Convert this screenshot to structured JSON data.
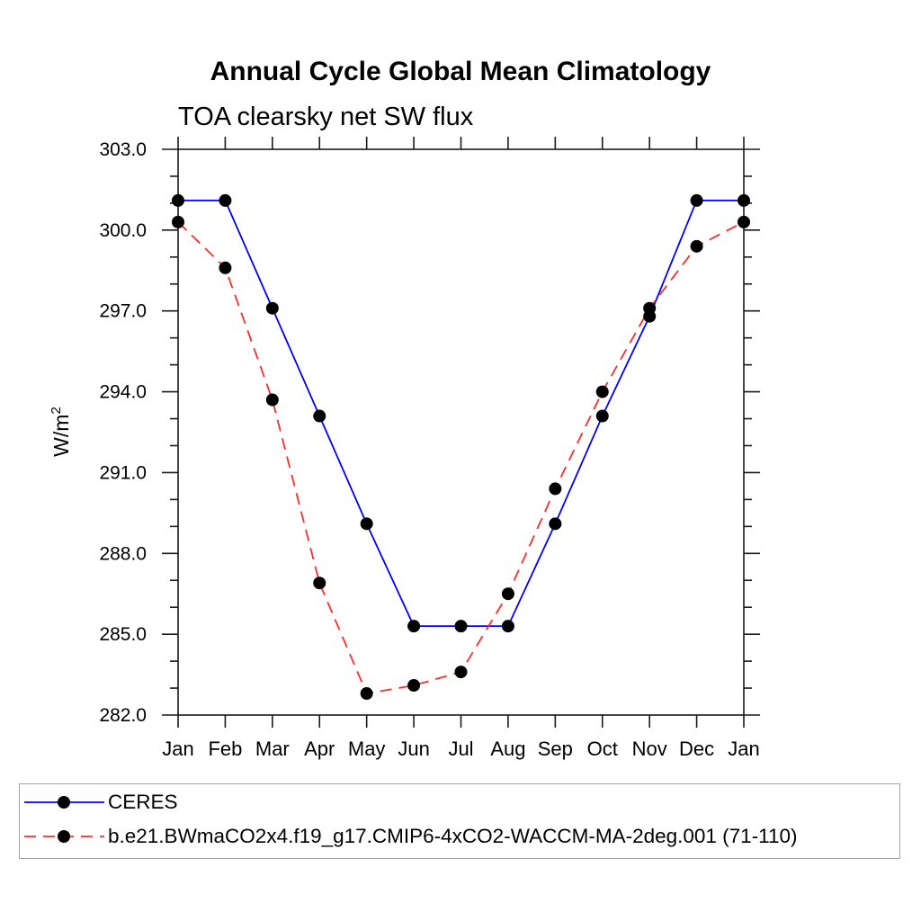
{
  "chart_data": {
    "type": "line",
    "title": "Annual Cycle Global Mean Climatology",
    "subtitle": "TOA clearsky net SW flux",
    "ylabel": "W/m",
    "ylabel_superscript": "2",
    "categories": [
      "Jan",
      "Feb",
      "Mar",
      "Apr",
      "May",
      "Jun",
      "Jul",
      "Aug",
      "Sep",
      "Oct",
      "Nov",
      "Dec",
      "Jan"
    ],
    "series": [
      {
        "name": "CERES",
        "color": "#0000ff",
        "line_style": "solid",
        "marker": "filled-circle",
        "marker_color": "#000000",
        "values": [
          301.1,
          301.1,
          297.1,
          293.1,
          289.1,
          285.3,
          285.3,
          285.3,
          289.1,
          293.1,
          296.8,
          301.1,
          301.1
        ]
      },
      {
        "name": "b.e21.BWmaCO2x4.f19_g17.CMIP6-4xCO2-WACCM-MA-2deg.001 (71-110)",
        "color": "#ff2a2a",
        "line_style": "dashed",
        "marker": "filled-circle",
        "marker_color": "#000000",
        "values": [
          300.3,
          298.6,
          293.7,
          286.9,
          282.8,
          283.1,
          283.6,
          286.5,
          290.4,
          294.0,
          297.1,
          299.4,
          300.3
        ]
      }
    ],
    "ylim": [
      282.0,
      303.0
    ],
    "ytick_major": 3.0,
    "ytick_minor": 1.0,
    "ytick_labels": [
      "282.0",
      "285.0",
      "288.0",
      "291.0",
      "294.0",
      "297.0",
      "300.0",
      "303.0"
    ],
    "grid": false,
    "legend_position": "bottom"
  }
}
